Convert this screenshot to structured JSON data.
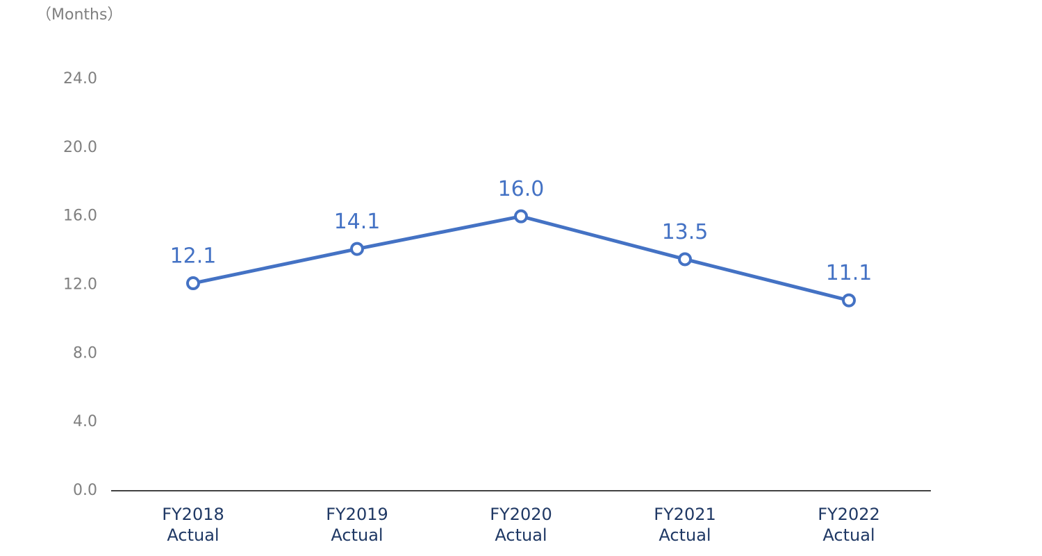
{
  "chart_data": {
    "type": "line",
    "y_axis_label": "（Months）",
    "categories": [
      "FY2018\nActual",
      "FY2019\nActual",
      "FY2020\nActual",
      "FY2021\nActual",
      "FY2022\nActual"
    ],
    "values": [
      12.1,
      14.1,
      16.0,
      13.5,
      11.1
    ],
    "value_labels": [
      "12.1",
      "14.1",
      "16.0",
      "13.5",
      "11.1"
    ],
    "color": "#4472c4",
    "ylim": [
      0,
      24
    ],
    "yticks": [
      {
        "value": 0,
        "label": "0.0"
      },
      {
        "value": 4,
        "label": "4.0"
      },
      {
        "value": 8,
        "label": "8.0"
      },
      {
        "value": 12,
        "label": "12.0"
      },
      {
        "value": 16,
        "label": "16.0"
      },
      {
        "value": 20,
        "label": "20.0"
      },
      {
        "value": 24,
        "label": "24.0"
      }
    ],
    "grid": false
  }
}
